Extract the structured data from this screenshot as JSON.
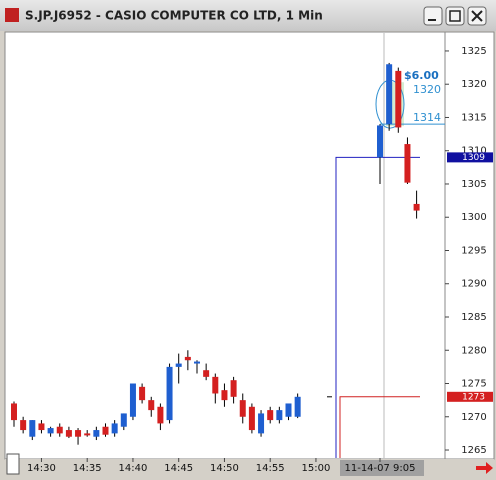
{
  "chart_data": {
    "type": "candlestick",
    "title": "S.JP.J6952 - CASIO COMPUTER CO LTD, 1 Min",
    "categories": [
      null,
      null,
      null,
      "14:30",
      null,
      null,
      null,
      null,
      "14:35",
      null,
      null,
      null,
      null,
      "14:40",
      null,
      null,
      null,
      null,
      "14:45",
      null,
      null,
      null,
      null,
      "14:50",
      null,
      null,
      null,
      null,
      "14:55",
      null,
      null,
      null,
      null,
      "15:00",
      null,
      null,
      null,
      null,
      null,
      null,
      "11-14-07  9:05",
      null,
      null,
      null,
      null
    ],
    "open": [
      1272,
      1269.5,
      1267,
      1269,
      1267.5,
      1268.5,
      1268,
      1268,
      1267.5,
      1267,
      1268.5,
      1267.5,
      1268.5,
      1270,
      1274.5,
      1272.5,
      1271.5,
      1269.5,
      1277.5,
      1279,
      1278,
      1277,
      1276,
      1274,
      1275.5,
      1272.5,
      1271.5,
      1267.5,
      1271,
      1269.5,
      1270,
      1270,
      null,
      null,
      null,
      null,
      null,
      null,
      null,
      null,
      1309,
      1314,
      1322,
      1311,
      1302
    ],
    "high": [
      1272.3,
      1270,
      1269.5,
      1269.5,
      1268.5,
      1269,
      1268.5,
      1268.3,
      1268,
      1268.5,
      1269,
      1269.5,
      1270.5,
      1275,
      1275,
      1273,
      1272,
      1278,
      1279.5,
      1280,
      1278.5,
      1278,
      1276.5,
      1275,
      1276,
      1273.5,
      1272,
      1271,
      1271.5,
      1271.5,
      1272,
      1273.5,
      null,
      null,
      null,
      null,
      null,
      null,
      null,
      null,
      1314,
      1323.2,
      1322.5,
      1312,
      1304
    ],
    "low": [
      1268.5,
      1267.5,
      1266.5,
      1267.5,
      1267,
      1267,
      1266.8,
      1265.8,
      1267,
      1266.5,
      1267,
      1267,
      1268,
      1269.5,
      1272,
      1270,
      1268,
      1269,
      1275,
      1277,
      1276.5,
      1275.5,
      1272,
      1271.5,
      1272,
      1269,
      1267.5,
      1267,
      1269,
      1269,
      1269.5,
      1269.8,
      null,
      null,
      null,
      null,
      null,
      null,
      null,
      null,
      1305,
      1313,
      1312.7,
      1305,
      1299.8
    ],
    "close": [
      1269.5,
      1268,
      1269.5,
      1268,
      1268.3,
      1267.5,
      1267,
      1267,
      1267.2,
      1268,
      1267.3,
      1269,
      1270.5,
      1275,
      1272.5,
      1271,
      1269,
      1277.5,
      1278,
      1278.5,
      1278.3,
      1276,
      1273.5,
      1272.5,
      1273,
      1270,
      1268,
      1270.5,
      1269.5,
      1271,
      1272,
      1273,
      null,
      null,
      null,
      null,
      null,
      null,
      null,
      null,
      1313.8,
      1323,
      1313.5,
      1305.2,
      1301
    ],
    "up_color": "#1f5fd0",
    "down_color": "#d42020",
    "ylim": [
      1263.8,
      1327.7
    ],
    "yticks": [
      1265,
      1270,
      1275,
      1280,
      1285,
      1290,
      1295,
      1300,
      1305,
      1310,
      1315,
      1320,
      1325
    ],
    "last_price": 1309,
    "reference_price": 1273,
    "order_label": "$6.00",
    "bracket": [
      1320,
      1314
    ]
  }
}
